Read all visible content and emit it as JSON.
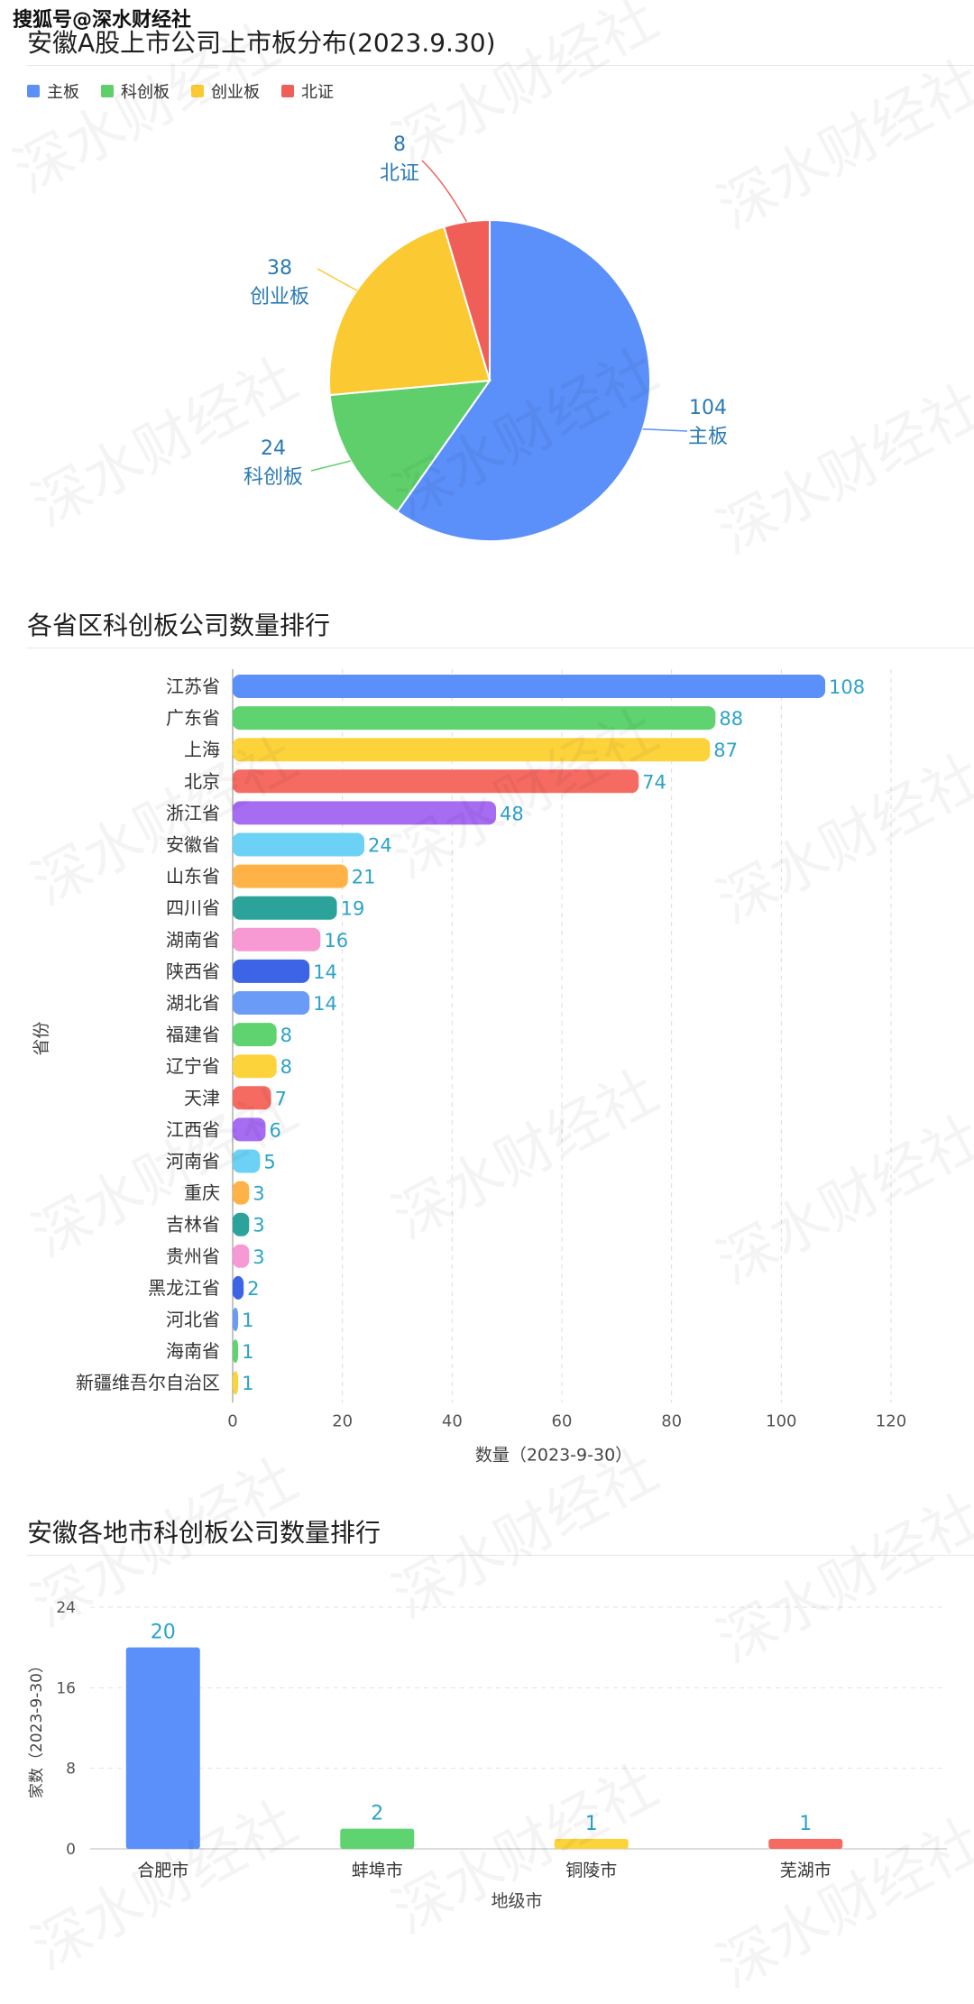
{
  "source_tag": "搜狐号@深水财经社",
  "watermark_text": "深水财经社",
  "charts": {
    "board_distribution": {
      "title": "安徽A股上市公司上市板分布(2023.9.30)"
    },
    "province_ranking": {
      "title": "各省区科创板公司数量排行"
    },
    "city_ranking": {
      "title": "安徽各地市科创板公司数量排行"
    }
  },
  "chart_data": [
    {
      "type": "pie",
      "title": "安徽A股上市公司上市板分布(2023.9.30)",
      "legend_position": "top-left",
      "labels": [
        "主板",
        "科创板",
        "创业板",
        "北证"
      ],
      "values": [
        104,
        24,
        38,
        8
      ],
      "colors": [
        "#5b8ff9",
        "#5fcf6b",
        "#fbc932",
        "#f05f57"
      ]
    },
    {
      "type": "bar",
      "orientation": "horizontal",
      "title": "各省区科创板公司数量排行",
      "xlabel": "数量（2023-9-30）",
      "ylabel": "省份",
      "xlim": [
        0,
        120
      ],
      "xticks": [
        "0",
        "20",
        "40",
        "60",
        "80",
        "100",
        "120"
      ],
      "grid": true,
      "categories": [
        "江苏省",
        "广东省",
        "上海",
        "北京",
        "浙江省",
        "安徽省",
        "山东省",
        "四川省",
        "湖南省",
        "陕西省",
        "湖北省",
        "福建省",
        "辽宁省",
        "天津",
        "江西省",
        "河南省",
        "重庆",
        "吉林省",
        "贵州省",
        "黑龙江省",
        "河北省",
        "海南省",
        "新疆维吾尔自治区"
      ],
      "values": [
        108,
        88,
        87,
        74,
        48,
        24,
        21,
        19,
        16,
        14,
        14,
        8,
        8,
        7,
        6,
        5,
        3,
        3,
        3,
        2,
        1,
        1,
        1
      ],
      "colors": [
        "#5b8ff9",
        "#5fd36f",
        "#fdd33c",
        "#f56b62",
        "#a66cf2",
        "#6cd2f5",
        "#ffb347",
        "#2ba39a",
        "#f79ad3",
        "#3d63e6",
        "#6a9cf7",
        "#5fd36f",
        "#fdd33c",
        "#f56b62",
        "#a66cf2",
        "#6cd2f5",
        "#ffb347",
        "#2ba39a",
        "#f79ad3",
        "#3d63e6",
        "#6a9cf7",
        "#5fd36f",
        "#fdd33c"
      ]
    },
    {
      "type": "bar",
      "orientation": "vertical",
      "title": "安徽各地市科创板公司数量排行",
      "xlabel": "地级市",
      "ylabel": "家数（2023-9-30）",
      "ylim": [
        0,
        24
      ],
      "yticks": [
        "0",
        "8",
        "16",
        "24"
      ],
      "grid": true,
      "categories": [
        "合肥市",
        "蚌埠市",
        "铜陵市",
        "芜湖市"
      ],
      "values": [
        20,
        2,
        1,
        1
      ],
      "colors": [
        "#5b8ff9",
        "#5fd36f",
        "#fdd33c",
        "#f56b62"
      ]
    }
  ]
}
